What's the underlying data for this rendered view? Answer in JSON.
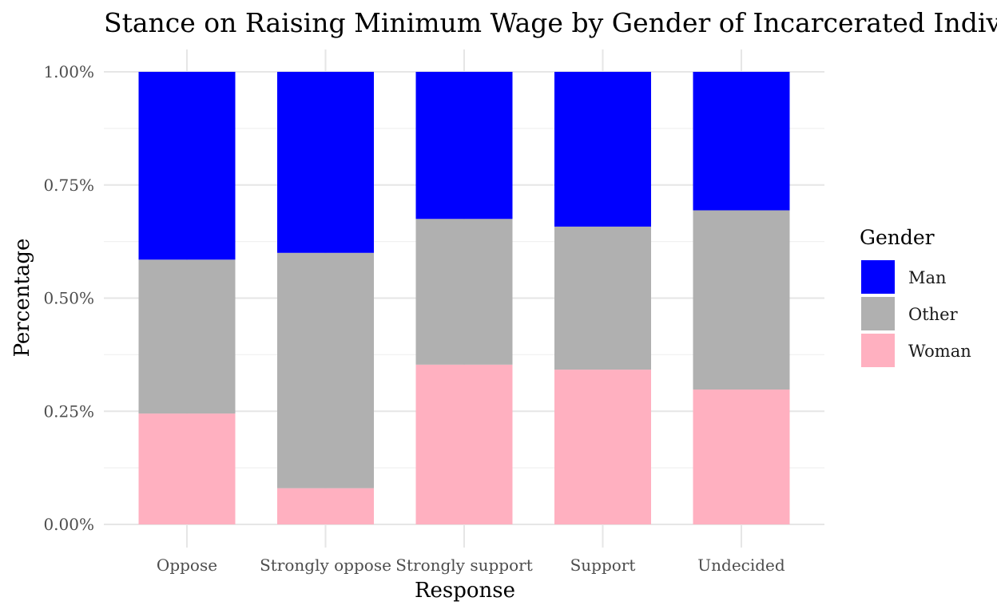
{
  "chart_data": {
    "type": "bar",
    "stacked": true,
    "title": "Stance on Raising Minimum Wage by Gender of Incarcerated Individual",
    "xlabel": "Response",
    "ylabel": "Percentage",
    "ylim": [
      0,
      1
    ],
    "yticks": [
      0,
      0.25,
      0.5,
      0.75,
      1.0
    ],
    "ytick_labels": [
      "0.00%",
      "0.25%",
      "0.50%",
      "0.75%",
      "1.00%"
    ],
    "categories": [
      "Oppose",
      "Strongly oppose",
      "Strongly support",
      "Support",
      "Undecided"
    ],
    "series": [
      {
        "name": "Woman",
        "color": "#FFB0C0",
        "values": [
          0.245,
          0.08,
          0.353,
          0.342,
          0.298
        ]
      },
      {
        "name": "Other",
        "color": "#B0B0B0",
        "values": [
          0.34,
          0.52,
          0.322,
          0.316,
          0.396
        ]
      },
      {
        "name": "Man",
        "color": "#0000FF",
        "values": [
          0.415,
          0.4,
          0.325,
          0.342,
          0.306
        ]
      }
    ],
    "legend": {
      "title": "Gender",
      "position": "right",
      "items": [
        "Man",
        "Other",
        "Woman"
      ]
    },
    "grid": true
  }
}
